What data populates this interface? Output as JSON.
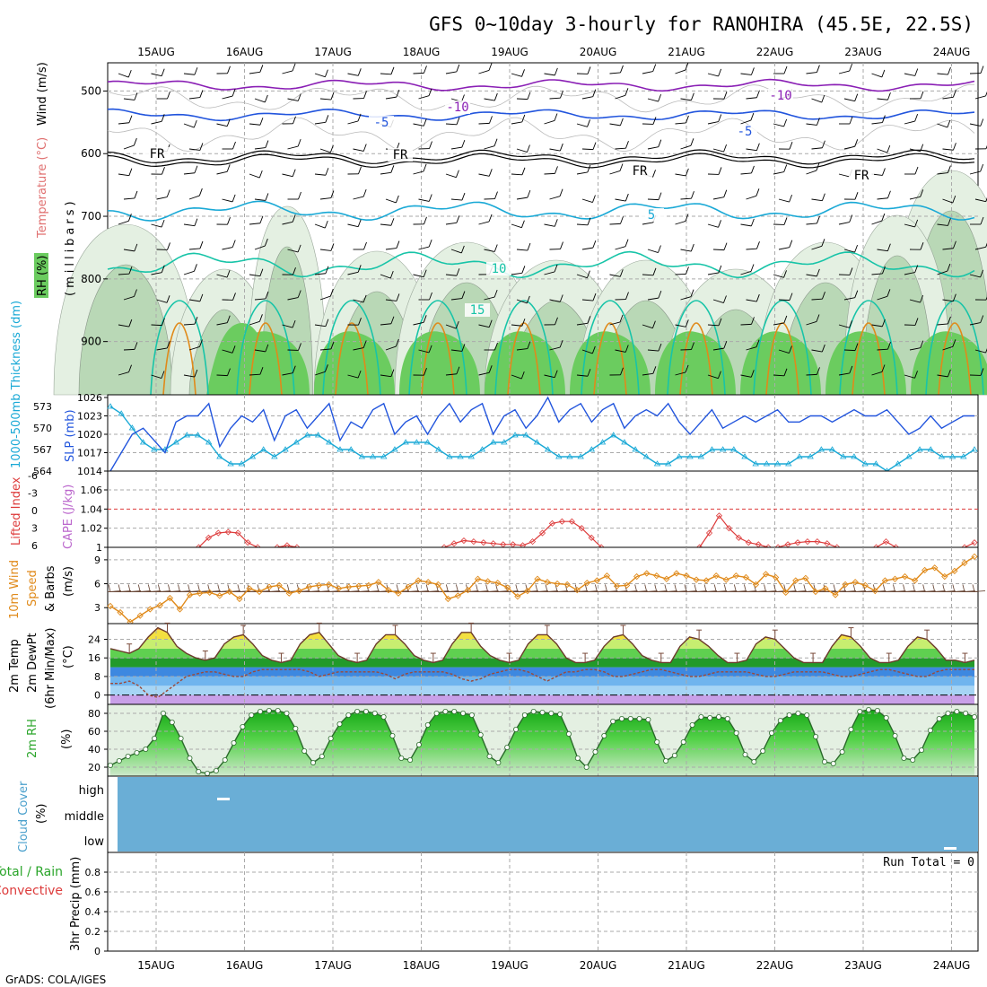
{
  "title": "GFS 0~10day 3-hourly for RANOHIRA (45.5E, 22.5S)",
  "footer": "GrADS: COLA/IGES",
  "dates": [
    "15AUG",
    "16AUG",
    "17AUG",
    "18AUG",
    "19AUG",
    "20AUG",
    "21AUG",
    "22AUG",
    "23AUG",
    "24AUG"
  ],
  "colors": {
    "grid": "#aaaaaa",
    "purple": "#8a1fb5",
    "blue": "#2255dd",
    "cyan": "#1aa9d6",
    "teal": "#18c4a8",
    "orange": "#e08a1a",
    "rh_dark": "#6bcc5f",
    "rh_mid": "#b9d8b6",
    "rh_light": "#e4f0e2",
    "cloud": "#6aaed6",
    "red": "#dd3b3b",
    "cape": "#bb66cc"
  },
  "panels": {
    "upper": {
      "label_rh": "RH (%)",
      "label_temp": "Temperature (°C)",
      "label_wind": "Wind (m/s)",
      "label_axis": "(millibars)",
      "yticks": [
        "500",
        "600",
        "700",
        "800",
        "900"
      ],
      "isotherm_labels": [
        "-10",
        "-10",
        "-5",
        "-5",
        "FR",
        "FR",
        "FR",
        "FR",
        "5",
        "10",
        "15"
      ]
    },
    "slp": {
      "label_left": "1000-500mb Thickness (dm)",
      "label_right": "SLP (mb)",
      "left_ticks": [
        "573",
        "570",
        "567",
        "564"
      ],
      "right_ticks": [
        "1026",
        "1023",
        "1020",
        "1017",
        "1014"
      ]
    },
    "li": {
      "label_left": "Lifted Index",
      "label_right": "CAPE (J/kg)",
      "left_ticks": [
        "-6",
        "-3",
        "0",
        "3",
        "6"
      ],
      "right_ticks": [
        "1.06",
        "1.04",
        "1.02",
        "1"
      ]
    },
    "wind10": {
      "label_a": "10m Wind",
      "label_b": "Speed",
      "label_c": "& Barbs",
      "label_d": "(m/s)",
      "yticks": [
        "9",
        "6",
        "3"
      ]
    },
    "temp2m": {
      "label_a": "2m Temp",
      "label_b": "2m DewPt",
      "label_c": "(6hr Min/Max)",
      "label_d": "(°C)",
      "yticks": [
        "24",
        "16",
        "8",
        "0"
      ]
    },
    "rh2m": {
      "label_a": "2m RH",
      "label_b": "(%)",
      "yticks": [
        "80",
        "60",
        "40",
        "20"
      ]
    },
    "cloud": {
      "label_a": "Cloud Cover",
      "label_b": "(%)",
      "levels": [
        "high",
        "middle",
        "low"
      ]
    },
    "precip": {
      "label_a": "Total / Rain",
      "label_b": "Convective",
      "label_c": "3hr Precip (mm)",
      "run_total": "Run Total = 0",
      "yticks": [
        "0.8",
        "0.6",
        "0.4",
        "0.2",
        "0"
      ]
    }
  },
  "chart_data": [
    {
      "type": "line",
      "title": "",
      "series": [
        {
          "name": "SLP (mb)",
          "values": [
            1014,
            1017,
            1020,
            1021,
            1019,
            1017,
            1022,
            1023,
            1023,
            1025,
            1018,
            1021,
            1023,
            1022,
            1024,
            1019,
            1023,
            1024,
            1021,
            1023,
            1025,
            1019,
            1022,
            1021,
            1024,
            1025,
            1020,
            1022,
            1023,
            1020,
            1023,
            1025,
            1022,
            1024,
            1025,
            1020,
            1023,
            1024,
            1021,
            1023,
            1026,
            1022,
            1024,
            1025,
            1022,
            1024,
            1025,
            1021,
            1023,
            1024,
            1023,
            1025,
            1022,
            1020,
            1022,
            1024,
            1021,
            1022,
            1023,
            1022,
            1023,
            1024,
            1022,
            1022,
            1023,
            1023,
            1022,
            1023,
            1024,
            1023,
            1023,
            1024,
            1022,
            1020,
            1021,
            1023,
            1021,
            1022,
            1023,
            1023
          ]
        },
        {
          "name": "1000-500mb Thickness (dm)",
          "values": [
            573,
            572,
            570,
            568,
            567,
            567,
            568,
            569,
            569,
            568,
            566,
            565,
            565,
            566,
            567,
            566,
            567,
            568,
            569,
            569,
            568,
            567,
            567,
            566,
            566,
            566,
            567,
            568,
            568,
            568,
            567,
            566,
            566,
            566,
            567,
            568,
            568,
            569,
            569,
            568,
            567,
            566,
            566,
            566,
            567,
            568,
            569,
            568,
            567,
            566,
            565,
            565,
            566,
            566,
            566,
            567,
            567,
            567,
            566,
            565,
            565,
            565,
            565,
            566,
            566,
            567,
            567,
            566,
            566,
            565,
            565,
            564,
            565,
            566,
            567,
            567,
            566,
            566,
            566,
            567
          ]
        }
      ]
    },
    {
      "type": "line",
      "title": "",
      "series": [
        {
          "name": "CAPE (J/kg)",
          "values": [
            1,
            1,
            1,
            1,
            1,
            1,
            1,
            1,
            1,
            1,
            1.01,
            1.015,
            1.016,
            1.015,
            1.005,
            1,
            1,
            1,
            1.002,
            1,
            1,
            1,
            1,
            1,
            1,
            1,
            1,
            1,
            1,
            1,
            1,
            1,
            1,
            1,
            1,
            1.004,
            1.007,
            1.006,
            1.005,
            1.004,
            1.003,
            1.003,
            1.002,
            1.006,
            1.015,
            1.025,
            1.027,
            1.027,
            1.02,
            1.01,
            1,
            1,
            1,
            1,
            1,
            1,
            1,
            1,
            1,
            1,
            1,
            1.015,
            1.033,
            1.02,
            1.01,
            1.005,
            1.003,
            1,
            1,
            1.003,
            1.005,
            1.006,
            1.006,
            1.004,
            1,
            1,
            1,
            1,
            1,
            1.006,
            1,
            1,
            1,
            1,
            1,
            1,
            1,
            1,
            1.005
          ]
        }
      ]
    },
    {
      "type": "line",
      "title": "",
      "series": [
        {
          "name": "10m Wind Speed (m/s)",
          "values": [
            3.2,
            2.4,
            1.2,
            2.0,
            2.8,
            3.3,
            4.2,
            2.8,
            4.6,
            4.8,
            4.9,
            4.5,
            5.0,
            4.1,
            5.4,
            5.0,
            5.6,
            5.8,
            4.8,
            5.1,
            5.6,
            5.8,
            5.9,
            5.4,
            5.6,
            5.7,
            5.8,
            6.2,
            5.2,
            4.8,
            5.6,
            6.4,
            6.2,
            5.9,
            4.1,
            4.5,
            5.2,
            6.6,
            6.3,
            6.1,
            5.5,
            4.4,
            5.1,
            6.6,
            6.2,
            6.0,
            5.9,
            5.2,
            6.1,
            6.4,
            7.0,
            5.7,
            5.8,
            6.9,
            7.3,
            7.0,
            6.6,
            7.3,
            7.0,
            6.5,
            6.4,
            7.0,
            6.5,
            7.0,
            6.8,
            5.9,
            7.2,
            6.8,
            4.9,
            6.4,
            6.7,
            5.0,
            5.4,
            4.6,
            5.9,
            6.2,
            5.8,
            5.1,
            6.4,
            6.6,
            6.9,
            6.4,
            7.7,
            8.0,
            6.9,
            7.6,
            8.6,
            9.4
          ]
        }
      ]
    },
    {
      "type": "area",
      "title": "",
      "series": [
        {
          "name": "2m Temp (°C)",
          "values": [
            20,
            19,
            18,
            20,
            25,
            29,
            27,
            21,
            18,
            16,
            15,
            16,
            22,
            25,
            26,
            22,
            17,
            15,
            14,
            15,
            22,
            26,
            27,
            22,
            17,
            15,
            14,
            15,
            22,
            26,
            26,
            22,
            17,
            15,
            14,
            15,
            22,
            27,
            27,
            21,
            17,
            15,
            14,
            15,
            22,
            26,
            26,
            22,
            16,
            14,
            14,
            15,
            21,
            25,
            26,
            22,
            17,
            15,
            14,
            14,
            21,
            25,
            24,
            21,
            17,
            14,
            14,
            15,
            22,
            25,
            24,
            20,
            16,
            14,
            14,
            14,
            21,
            26,
            25,
            21,
            16,
            14,
            14,
            15,
            21,
            25,
            24,
            20,
            15,
            15,
            14,
            15
          ]
        },
        {
          "name": "2m DewPt (°C)",
          "values": [
            5,
            5,
            6,
            4,
            0,
            -1,
            2,
            5,
            8,
            9,
            10,
            10,
            9,
            8,
            8,
            10,
            11,
            11,
            11,
            11,
            11,
            10,
            8,
            9,
            10,
            10,
            10,
            10,
            10,
            9,
            7,
            9,
            10,
            10,
            10,
            10,
            9,
            7,
            6,
            7,
            9,
            10,
            11,
            11,
            10,
            8,
            6,
            8,
            10,
            10,
            11,
            11,
            10,
            8,
            8,
            9,
            10,
            11,
            11,
            10,
            9,
            8,
            8,
            9,
            10,
            10,
            10,
            10,
            9,
            8,
            8,
            9,
            10,
            10,
            10,
            10,
            9,
            8,
            8,
            9,
            10,
            11,
            11,
            10,
            9,
            8,
            8,
            10,
            11,
            11,
            11,
            11
          ]
        }
      ]
    },
    {
      "type": "area",
      "title": "",
      "series": [
        {
          "name": "2m RH (%)",
          "values": [
            22,
            27,
            32,
            36,
            40,
            52,
            80,
            70,
            52,
            30,
            15,
            13,
            16,
            28,
            47,
            65,
            78,
            82,
            83,
            83,
            80,
            63,
            38,
            25,
            32,
            52,
            68,
            78,
            82,
            82,
            80,
            76,
            55,
            30,
            28,
            45,
            67,
            80,
            82,
            82,
            80,
            78,
            56,
            32,
            25,
            42,
            62,
            78,
            82,
            81,
            80,
            79,
            57,
            30,
            20,
            37,
            55,
            71,
            74,
            74,
            74,
            73,
            48,
            27,
            33,
            48,
            67,
            76,
            75,
            76,
            74,
            58,
            34,
            26,
            38,
            58,
            72,
            78,
            80,
            78,
            54,
            26,
            24,
            37,
            62,
            82,
            84,
            83,
            75,
            55,
            30,
            28,
            39,
            61,
            74,
            80,
            82,
            80,
            76
          ]
        }
      ]
    },
    {
      "type": "line",
      "title": "",
      "series": [
        {
          "name": "Cloud Cover (%)",
          "values": [
            100,
            100,
            100,
            100,
            100,
            100,
            100,
            100,
            100,
            100
          ]
        }
      ]
    },
    {
      "type": "bar",
      "title": "",
      "categories": [
        "15AUG",
        "16AUG",
        "17AUG",
        "18AUG",
        "19AUG",
        "20AUG",
        "21AUG",
        "22AUG",
        "23AUG",
        "24AUG"
      ],
      "values": [
        0,
        0,
        0,
        0,
        0,
        0,
        0,
        0,
        0,
        0
      ],
      "ylim": [
        0,
        1
      ]
    }
  ]
}
